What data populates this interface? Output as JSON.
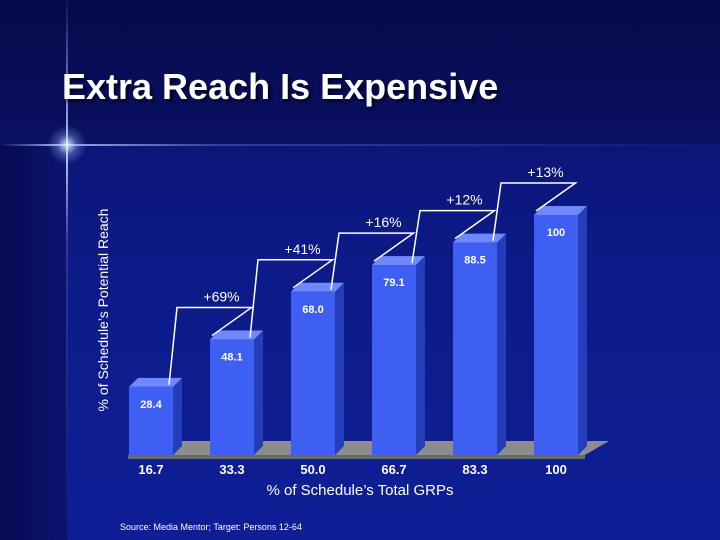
{
  "slide": {
    "title": "Extra Reach Is Expensive",
    "source": "Source: Media Mentor; Target: Persons 12-64"
  },
  "colors": {
    "bar_front": "#3f5ff2",
    "bar_side": "#243db8",
    "bar_top": "#6f88ff",
    "floor": "#8c8c8c"
  },
  "chart_data": {
    "type": "bar",
    "title": "Extra Reach Is Expensive",
    "xlabel": "% of Schedule’s Total GRPs",
    "ylabel": "% of Schedule’s Potential Reach",
    "categories": [
      "16.7",
      "33.3",
      "50.0",
      "66.7",
      "83.3",
      "100"
    ],
    "values": [
      28.4,
      48.1,
      68.0,
      79.1,
      88.5,
      100
    ],
    "value_labels": [
      "28.4",
      "48.1",
      "68.0",
      "79.1",
      "88.5",
      "100"
    ],
    "changes": [
      "+69%",
      "+41%",
      "+16%",
      "+12%",
      "+13%"
    ],
    "ylim": [
      0,
      100
    ]
  }
}
